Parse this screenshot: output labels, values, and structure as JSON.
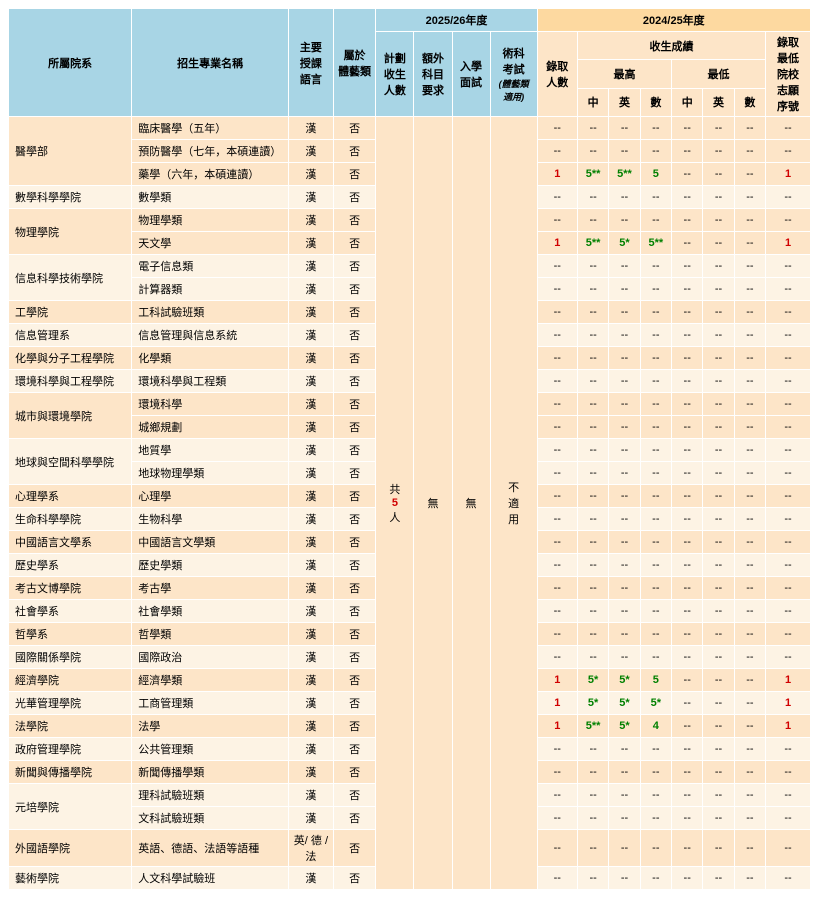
{
  "headers": {
    "dept": "所屬院系",
    "program": "招生專業名稱",
    "lang": "主要\n授課\n語言",
    "art": "屬於\n體藝類",
    "year_2025": "2025/26年度",
    "year_2024": "2024/25年度",
    "plan": "計劃\n收生\n人數",
    "extra": "額外\n科目\n要求",
    "interview": "入學\n面試",
    "practical": "術科\n考試",
    "practical_note": "(體藝類適用)",
    "admitted": "錄取\n人數",
    "score_group": "收生成績",
    "score_high": "最高",
    "score_low": "最低",
    "sc_ch": "中",
    "sc_en": "英",
    "sc_ma": "數",
    "rank": "錄取\n最低\n院校\n志願\n序號"
  },
  "merged": {
    "plan": "共\n5\n人",
    "extra": "無",
    "interview": "無",
    "practical": "不\n適\n用"
  },
  "colors": {
    "header_blue": "#a8d5e5",
    "header_orange": "#fdd9a0",
    "header_peach": "#fde5c8",
    "cell_peach": "#fde5c8",
    "cell_cream": "#fdf3e4",
    "text_red": "#d10000",
    "text_green": "#008000"
  },
  "rows": [
    {
      "dept": "醫學部",
      "span": 3,
      "prog": "臨床醫學（五年）",
      "lang": "漢",
      "art": "否",
      "adm": "--",
      "h": [
        "--",
        "--",
        "--"
      ],
      "l": [
        "--",
        "--",
        "--"
      ],
      "rank": "--"
    },
    {
      "prog": "預防醫學（七年，本碩連讀）",
      "lang": "漢",
      "art": "否",
      "adm": "--",
      "h": [
        "--",
        "--",
        "--"
      ],
      "l": [
        "--",
        "--",
        "--"
      ],
      "rank": "--"
    },
    {
      "prog": "藥學（六年，本碩連讀）",
      "lang": "漢",
      "art": "否",
      "adm": "1",
      "adm_red": true,
      "h": [
        "5**",
        "5**",
        "5"
      ],
      "h_green": [
        true,
        true,
        true
      ],
      "l": [
        "--",
        "--",
        "--"
      ],
      "rank": "1",
      "rank_red": true
    },
    {
      "dept": "數學科學學院",
      "span": 1,
      "prog": "數學類",
      "lang": "漢",
      "art": "否",
      "adm": "--",
      "h": [
        "--",
        "--",
        "--"
      ],
      "l": [
        "--",
        "--",
        "--"
      ],
      "rank": "--"
    },
    {
      "dept": "物理學院",
      "span": 2,
      "prog": "物理學類",
      "lang": "漢",
      "art": "否",
      "adm": "--",
      "h": [
        "--",
        "--",
        "--"
      ],
      "l": [
        "--",
        "--",
        "--"
      ],
      "rank": "--"
    },
    {
      "prog": "天文學",
      "lang": "漢",
      "art": "否",
      "adm": "1",
      "adm_red": true,
      "h": [
        "5**",
        "5*",
        "5**"
      ],
      "h_green": [
        true,
        true,
        true
      ],
      "l": [
        "--",
        "--",
        "--"
      ],
      "rank": "1",
      "rank_red": true
    },
    {
      "dept": "信息科學技術學院",
      "span": 2,
      "prog": "電子信息類",
      "lang": "漢",
      "art": "否",
      "adm": "--",
      "h": [
        "--",
        "--",
        "--"
      ],
      "l": [
        "--",
        "--",
        "--"
      ],
      "rank": "--"
    },
    {
      "prog": "計算器類",
      "lang": "漢",
      "art": "否",
      "adm": "--",
      "h": [
        "--",
        "--",
        "--"
      ],
      "l": [
        "--",
        "--",
        "--"
      ],
      "rank": "--"
    },
    {
      "dept": "工學院",
      "span": 1,
      "prog": "工科試驗班類",
      "lang": "漢",
      "art": "否",
      "adm": "--",
      "h": [
        "--",
        "--",
        "--"
      ],
      "l": [
        "--",
        "--",
        "--"
      ],
      "rank": "--"
    },
    {
      "dept": "信息管理系",
      "span": 1,
      "prog": "信息管理與信息系統",
      "lang": "漢",
      "art": "否",
      "adm": "--",
      "h": [
        "--",
        "--",
        "--"
      ],
      "l": [
        "--",
        "--",
        "--"
      ],
      "rank": "--"
    },
    {
      "dept": "化學與分子工程學院",
      "span": 1,
      "prog": "化學類",
      "lang": "漢",
      "art": "否",
      "adm": "--",
      "h": [
        "--",
        "--",
        "--"
      ],
      "l": [
        "--",
        "--",
        "--"
      ],
      "rank": "--"
    },
    {
      "dept": "環境科學與工程學院",
      "span": 1,
      "prog": "環境科學與工程類",
      "lang": "漢",
      "art": "否",
      "adm": "--",
      "h": [
        "--",
        "--",
        "--"
      ],
      "l": [
        "--",
        "--",
        "--"
      ],
      "rank": "--"
    },
    {
      "dept": "城市與環境學院",
      "span": 2,
      "prog": "環境科學",
      "lang": "漢",
      "art": "否",
      "adm": "--",
      "h": [
        "--",
        "--",
        "--"
      ],
      "l": [
        "--",
        "--",
        "--"
      ],
      "rank": "--"
    },
    {
      "prog": "城鄉規劃",
      "lang": "漢",
      "art": "否",
      "adm": "--",
      "h": [
        "--",
        "--",
        "--"
      ],
      "l": [
        "--",
        "--",
        "--"
      ],
      "rank": "--"
    },
    {
      "dept": "地球與空間科學學院",
      "span": 2,
      "prog": "地質學",
      "lang": "漢",
      "art": "否",
      "adm": "--",
      "h": [
        "--",
        "--",
        "--"
      ],
      "l": [
        "--",
        "--",
        "--"
      ],
      "rank": "--"
    },
    {
      "prog": "地球物理學類",
      "lang": "漢",
      "art": "否",
      "adm": "--",
      "h": [
        "--",
        "--",
        "--"
      ],
      "l": [
        "--",
        "--",
        "--"
      ],
      "rank": "--"
    },
    {
      "dept": "心理學系",
      "span": 1,
      "prog": "心理學",
      "lang": "漢",
      "art": "否",
      "adm": "--",
      "h": [
        "--",
        "--",
        "--"
      ],
      "l": [
        "--",
        "--",
        "--"
      ],
      "rank": "--"
    },
    {
      "dept": "生命科學學院",
      "span": 1,
      "prog": "生物科學",
      "lang": "漢",
      "art": "否",
      "adm": "--",
      "h": [
        "--",
        "--",
        "--"
      ],
      "l": [
        "--",
        "--",
        "--"
      ],
      "rank": "--"
    },
    {
      "dept": "中國語言文學系",
      "span": 1,
      "prog": "中國語言文學類",
      "lang": "漢",
      "art": "否",
      "adm": "--",
      "h": [
        "--",
        "--",
        "--"
      ],
      "l": [
        "--",
        "--",
        "--"
      ],
      "rank": "--"
    },
    {
      "dept": "歷史學系",
      "span": 1,
      "prog": "歷史學類",
      "lang": "漢",
      "art": "否",
      "adm": "--",
      "h": [
        "--",
        "--",
        "--"
      ],
      "l": [
        "--",
        "--",
        "--"
      ],
      "rank": "--"
    },
    {
      "dept": "考古文博學院",
      "span": 1,
      "prog": "考古學",
      "lang": "漢",
      "art": "否",
      "adm": "--",
      "h": [
        "--",
        "--",
        "--"
      ],
      "l": [
        "--",
        "--",
        "--"
      ],
      "rank": "--"
    },
    {
      "dept": "社會學系",
      "span": 1,
      "prog": "社會學類",
      "lang": "漢",
      "art": "否",
      "adm": "--",
      "h": [
        "--",
        "--",
        "--"
      ],
      "l": [
        "--",
        "--",
        "--"
      ],
      "rank": "--"
    },
    {
      "dept": "哲學系",
      "span": 1,
      "prog": "哲學類",
      "lang": "漢",
      "art": "否",
      "adm": "--",
      "h": [
        "--",
        "--",
        "--"
      ],
      "l": [
        "--",
        "--",
        "--"
      ],
      "rank": "--"
    },
    {
      "dept": "國際關係學院",
      "span": 1,
      "prog": "國際政治",
      "lang": "漢",
      "art": "否",
      "adm": "--",
      "h": [
        "--",
        "--",
        "--"
      ],
      "l": [
        "--",
        "--",
        "--"
      ],
      "rank": "--"
    },
    {
      "dept": "經濟學院",
      "span": 1,
      "prog": "經濟學類",
      "lang": "漢",
      "art": "否",
      "adm": "1",
      "adm_red": true,
      "h": [
        "5*",
        "5*",
        "5"
      ],
      "h_green": [
        true,
        true,
        true
      ],
      "l": [
        "--",
        "--",
        "--"
      ],
      "rank": "1",
      "rank_red": true
    },
    {
      "dept": "光華管理學院",
      "span": 1,
      "prog": "工商管理類",
      "lang": "漢",
      "art": "否",
      "adm": "1",
      "adm_red": true,
      "h": [
        "5*",
        "5*",
        "5*"
      ],
      "h_green": [
        true,
        true,
        true
      ],
      "l": [
        "--",
        "--",
        "--"
      ],
      "rank": "1",
      "rank_red": true
    },
    {
      "dept": "法學院",
      "span": 1,
      "prog": "法學",
      "lang": "漢",
      "art": "否",
      "adm": "1",
      "adm_red": true,
      "h": [
        "5**",
        "5*",
        "4"
      ],
      "h_green": [
        true,
        true,
        true
      ],
      "l": [
        "--",
        "--",
        "--"
      ],
      "rank": "1",
      "rank_red": true
    },
    {
      "dept": "政府管理學院",
      "span": 1,
      "prog": "公共管理類",
      "lang": "漢",
      "art": "否",
      "adm": "--",
      "h": [
        "--",
        "--",
        "--"
      ],
      "l": [
        "--",
        "--",
        "--"
      ],
      "rank": "--"
    },
    {
      "dept": "新聞與傳播學院",
      "span": 1,
      "prog": "新聞傳播學類",
      "lang": "漢",
      "art": "否",
      "adm": "--",
      "h": [
        "--",
        "--",
        "--"
      ],
      "l": [
        "--",
        "--",
        "--"
      ],
      "rank": "--"
    },
    {
      "dept": "元培學院",
      "span": 2,
      "prog": "理科試驗班類",
      "lang": "漢",
      "art": "否",
      "adm": "--",
      "h": [
        "--",
        "--",
        "--"
      ],
      "l": [
        "--",
        "--",
        "--"
      ],
      "rank": "--"
    },
    {
      "prog": "文科試驗班類",
      "lang": "漢",
      "art": "否",
      "adm": "--",
      "h": [
        "--",
        "--",
        "--"
      ],
      "l": [
        "--",
        "--",
        "--"
      ],
      "rank": "--"
    },
    {
      "dept": "外國語學院",
      "span": 1,
      "prog": "英語、德語、法語等語種",
      "lang": "英/ 德 /法",
      "art": "否",
      "adm": "--",
      "h": [
        "--",
        "--",
        "--"
      ],
      "l": [
        "--",
        "--",
        "--"
      ],
      "rank": "--"
    },
    {
      "dept": "藝術學院",
      "span": 1,
      "prog": "人文科學試驗班",
      "lang": "漢",
      "art": "否",
      "adm": "--",
      "h": [
        "--",
        "--",
        "--"
      ],
      "l": [
        "--",
        "--",
        "--"
      ],
      "rank": "--"
    }
  ]
}
